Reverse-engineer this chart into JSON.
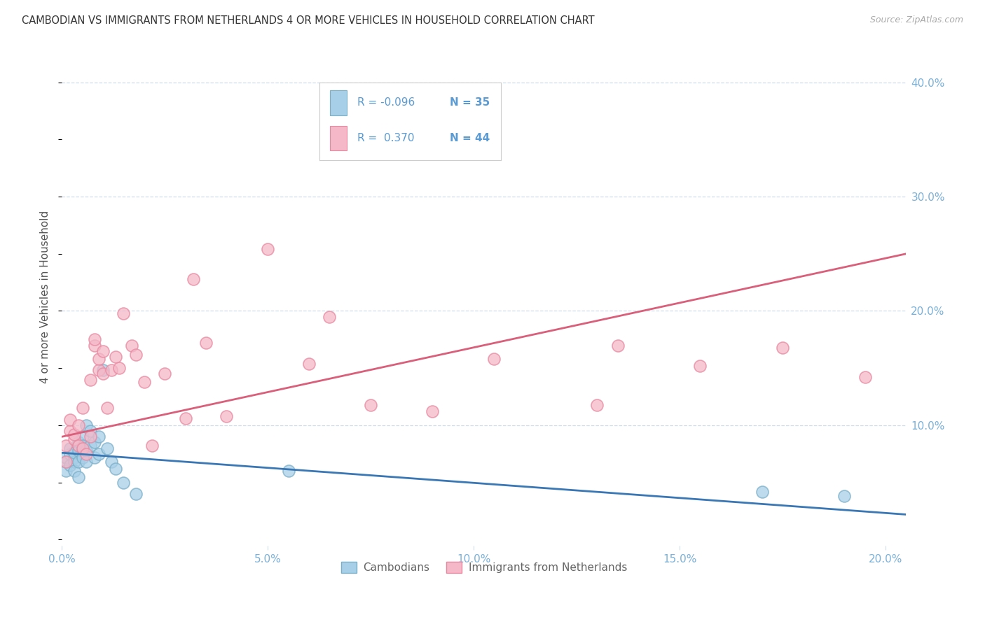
{
  "title": "CAMBODIAN VS IMMIGRANTS FROM NETHERLANDS 4 OR MORE VEHICLES IN HOUSEHOLD CORRELATION CHART",
  "source": "Source: ZipAtlas.com",
  "ylabel": "4 or more Vehicles in Household",
  "xlim": [
    0.0,
    0.205
  ],
  "ylim": [
    -0.005,
    0.43
  ],
  "xticks": [
    0.0,
    0.05,
    0.1,
    0.15,
    0.2
  ],
  "xticklabels": [
    "0.0%",
    "5.0%",
    "10.0%",
    "15.0%",
    "20.0%"
  ],
  "yticks_right": [
    0.1,
    0.2,
    0.3,
    0.4
  ],
  "yticklabels_right": [
    "10.0%",
    "20.0%",
    "30.0%",
    "40.0%"
  ],
  "blue_color": "#a8cfe8",
  "pink_color": "#f4b8c8",
  "blue_edge_color": "#7aafc8",
  "pink_edge_color": "#e888a0",
  "blue_line_color": "#3a78b5",
  "pink_line_color": "#d95f7a",
  "tick_color": "#7ab0d8",
  "grid_color": "#d0dde8",
  "cambodian_x": [
    0.001,
    0.001,
    0.001,
    0.002,
    0.002,
    0.002,
    0.003,
    0.003,
    0.003,
    0.003,
    0.004,
    0.004,
    0.004,
    0.004,
    0.005,
    0.005,
    0.005,
    0.006,
    0.006,
    0.006,
    0.007,
    0.007,
    0.008,
    0.008,
    0.009,
    0.009,
    0.01,
    0.011,
    0.012,
    0.013,
    0.015,
    0.018,
    0.055,
    0.17,
    0.19
  ],
  "cambodian_y": [
    0.068,
    0.072,
    0.06,
    0.075,
    0.065,
    0.08,
    0.072,
    0.068,
    0.076,
    0.06,
    0.085,
    0.078,
    0.068,
    0.055,
    0.09,
    0.082,
    0.072,
    0.1,
    0.078,
    0.068,
    0.095,
    0.082,
    0.085,
    0.072,
    0.09,
    0.075,
    0.148,
    0.08,
    0.068,
    0.062,
    0.05,
    0.04,
    0.06,
    0.042,
    0.038
  ],
  "netherlands_x": [
    0.001,
    0.001,
    0.002,
    0.002,
    0.003,
    0.003,
    0.004,
    0.004,
    0.005,
    0.005,
    0.006,
    0.007,
    0.007,
    0.008,
    0.008,
    0.009,
    0.009,
    0.01,
    0.01,
    0.011,
    0.012,
    0.013,
    0.014,
    0.015,
    0.017,
    0.018,
    0.02,
    0.022,
    0.025,
    0.03,
    0.032,
    0.035,
    0.04,
    0.05,
    0.06,
    0.065,
    0.075,
    0.09,
    0.105,
    0.13,
    0.135,
    0.155,
    0.175,
    0.195
  ],
  "netherlands_y": [
    0.082,
    0.068,
    0.095,
    0.105,
    0.088,
    0.092,
    0.1,
    0.082,
    0.115,
    0.08,
    0.075,
    0.14,
    0.09,
    0.17,
    0.175,
    0.148,
    0.158,
    0.145,
    0.165,
    0.115,
    0.148,
    0.16,
    0.15,
    0.198,
    0.17,
    0.162,
    0.138,
    0.082,
    0.145,
    0.106,
    0.228,
    0.172,
    0.108,
    0.254,
    0.154,
    0.195,
    0.118,
    0.112,
    0.158,
    0.118,
    0.17,
    0.152,
    0.168,
    0.142
  ]
}
